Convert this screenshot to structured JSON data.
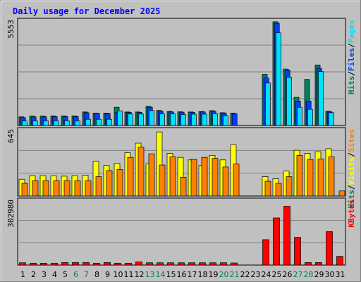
{
  "title": "Daily usage for December 2025",
  "colors": {
    "background": "#c0c0c0",
    "plot": "#c0c0c0",
    "title": "#0000ff",
    "hits": "#00805c",
    "files": "#0040ff",
    "pages": "#00e0ff",
    "visits": "#ffff00",
    "sites": "#ff8000",
    "kbytes": "#ff0000",
    "weekend_label": "#00805c"
  },
  "chart_data": [
    {
      "type": "bar",
      "panel": "top",
      "y_max_label": "5553",
      "ylim": [
        0,
        5553
      ],
      "legend": [
        {
          "text": "Pages",
          "color": "#00e0ff"
        },
        {
          "text": "Files",
          "color": "#0040ff"
        },
        {
          "text": "Hits",
          "color": "#00805c"
        }
      ],
      "series": [
        {
          "name": "Hits",
          "values": [
            460,
            500,
            500,
            510,
            510,
            510,
            720,
            660,
            660,
            970,
            720,
            720,
            1020,
            800,
            750,
            730,
            720,
            740,
            790,
            680,
            660,
            0,
            0,
            2720,
            5520,
            3000,
            1500,
            2450,
            3220,
            760,
            0
          ]
        },
        {
          "name": "Files",
          "values": [
            420,
            460,
            460,
            470,
            470,
            470,
            680,
            640,
            640,
            700,
            700,
            700,
            970,
            760,
            720,
            710,
            700,
            720,
            760,
            650,
            620,
            0,
            0,
            2530,
            5440,
            2950,
            1300,
            1300,
            3040,
            720,
            0
          ]
        },
        {
          "name": "Pages",
          "values": [
            240,
            250,
            250,
            250,
            250,
            250,
            330,
            330,
            330,
            780,
            610,
            610,
            790,
            620,
            620,
            580,
            600,
            600,
            630,
            520,
            0,
            0,
            0,
            2260,
            4930,
            2570,
            970,
            860,
            2870,
            680,
            0
          ]
        }
      ]
    },
    {
      "type": "bar",
      "panel": "middle",
      "y_max_label": "645",
      "ylim": [
        0,
        645
      ],
      "legend": [
        {
          "text": "Sites",
          "color": "#ff8000"
        },
        {
          "text": "Visits",
          "color": "#ffff00"
        },
        {
          "text": "Hits",
          "color": "#00805c"
        }
      ],
      "series": [
        {
          "name": "Visits",
          "values": [
            165,
            200,
            200,
            200,
            195,
            200,
            205,
            340,
            300,
            320,
            425,
            520,
            315,
            630,
            420,
            380,
            355,
            300,
            400,
            355,
            505,
            0,
            0,
            190,
            170,
            245,
            450,
            420,
            435,
            465,
            0
          ],
          "colors": [
            "#ffff00",
            "#ffff00",
            "#ffff00",
            "#ffff00",
            "#ffff00",
            "#ffff00",
            "#ffff00",
            "#ffff00",
            "#ffff00",
            "#ffff00",
            "#ffff00",
            "#ffff00",
            "#ffff00",
            "#ffff00",
            "#ffff00",
            "#ffff00",
            "#ffff00",
            "#ffff00",
            "#ffff00",
            "#ffff00",
            "#ffff00",
            "#ffff00",
            "#ffff00",
            "#ffff00",
            "#ffff00",
            "#ffff00",
            "#ffff00",
            "#ffff00",
            "#ffff00",
            "#ffff00",
            "#ffff00"
          ]
        },
        {
          "name": "Sites",
          "values": [
            125,
            150,
            150,
            150,
            150,
            150,
            150,
            190,
            250,
            260,
            380,
            480,
            415,
            305,
            385,
            185,
            360,
            380,
            370,
            285,
            315,
            0,
            0,
            145,
            125,
            190,
            400,
            360,
            365,
            385,
            50
          ],
          "colors": [
            "#ff8000",
            "#ff8000",
            "#ff8000",
            "#ff8000",
            "#ff8000",
            "#ff8000",
            "#ff8000",
            "#ff8000",
            "#ff8000",
            "#ff8000",
            "#ff8000",
            "#ff8000",
            "#ff8000",
            "#ff8000",
            "#ff8000",
            "#ff8000",
            "#ff8000",
            "#ff8000",
            "#ff8000",
            "#ff8000",
            "#ff8000",
            "#ff8000",
            "#ff8000",
            "#ff8000",
            "#ff8000",
            "#ff8000",
            "#ff8000",
            "#ff8000",
            "#ff8000",
            "#ff8000",
            "#ff8000"
          ]
        }
      ]
    },
    {
      "type": "bar",
      "panel": "bottom",
      "y_max_label": "302980",
      "ylim": [
        0,
        302980
      ],
      "legend": [
        {
          "text": "KBytes",
          "color": "#ff0000"
        }
      ],
      "series": [
        {
          "name": "KBytes",
          "values": [
            11000,
            9000,
            9000,
            9000,
            12000,
            12000,
            12000,
            9000,
            12000,
            9000,
            9000,
            15000,
            11000,
            11000,
            11000,
            11000,
            11000,
            11000,
            11000,
            11000,
            10000,
            0,
            0,
            120000,
            223000,
            278000,
            131000,
            12000,
            12000,
            158000,
            41000
          ]
        }
      ]
    }
  ],
  "x_axis": {
    "labels": [
      "1",
      "2",
      "3",
      "4",
      "5",
      "6",
      "7",
      "8",
      "9",
      "10",
      "11",
      "12",
      "13",
      "14",
      "15",
      "16",
      "17",
      "18",
      "19",
      "20",
      "21",
      "22",
      "23",
      "24",
      "25",
      "26",
      "27",
      "28",
      "29",
      "30",
      "31"
    ],
    "weekend": [
      6,
      7,
      13,
      14,
      20,
      21,
      27,
      28
    ]
  }
}
